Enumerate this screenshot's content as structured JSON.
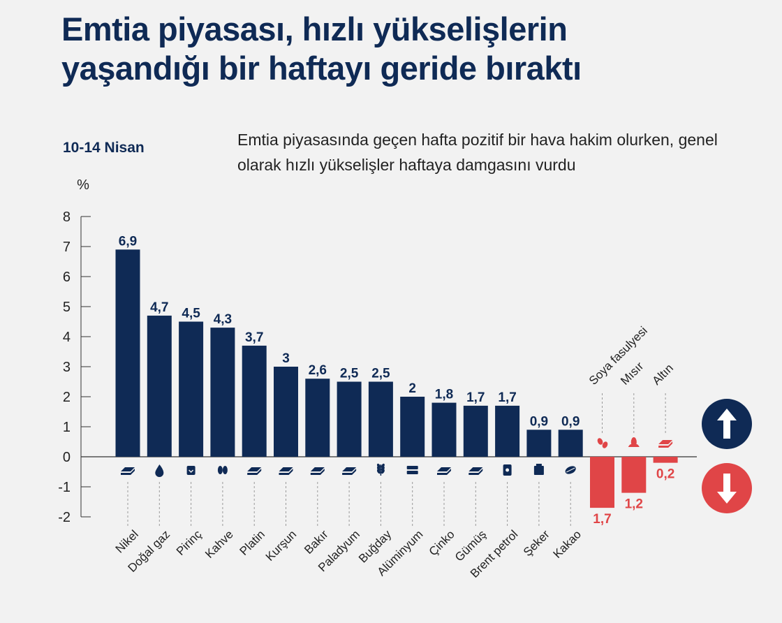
{
  "title_lines": [
    "Emtia piyasası, hızlı yükselişlerin",
    "yaşandığı bir haftayı geride bıraktı"
  ],
  "period": "10-14 Nisan",
  "subtitle": "Emtia piyasasında geçen hafta pozitif bir hava hakim olurken, genel olarak hızlı yükselişler haftaya damgasını vurdu",
  "colors": {
    "up": "#0f2a55",
    "down": "#e04547",
    "background": "#f2f2f2",
    "text": "#222222"
  },
  "chart_data": {
    "type": "bar",
    "ylabel": "%",
    "ylim": [
      -2,
      8
    ],
    "yticks": [
      8,
      7,
      6,
      5,
      4,
      3,
      2,
      1,
      0,
      -1,
      -2
    ],
    "categories": [
      "Nikel",
      "Doğal gaz",
      "Pirinç",
      "Kahve",
      "Platin",
      "Kurşun",
      "Bakır",
      "Paladyum",
      "Buğday",
      "Alüminyum",
      "Çinko",
      "Gümüş",
      "Brent petrol",
      "Şeker",
      "Kakao",
      "Soya fasulyesi",
      "Mısır",
      "Altın"
    ],
    "values": [
      6.9,
      4.7,
      4.5,
      4.3,
      3.7,
      3.0,
      2.6,
      2.5,
      2.5,
      2.0,
      1.8,
      1.7,
      1.7,
      0.9,
      0.9,
      -1.7,
      -1.2,
      -0.2
    ],
    "labels": [
      "6,9",
      "4,7",
      "4,5",
      "4,3",
      "3,7",
      "3",
      "2,6",
      "2,5",
      "2,5",
      "2",
      "1,8",
      "1,7",
      "1,7",
      "0,9",
      "0,9",
      "1,7",
      "1,2",
      "0,2"
    ],
    "icons": [
      "metal-bars-icon",
      "flame-drop-icon",
      "rice-bag-icon",
      "coffee-bean-icon",
      "metal-bars-icon",
      "metal-bars-icon",
      "metal-bars-icon",
      "metal-bars-icon",
      "wheat-icon",
      "metal-stack-icon",
      "metal-bars-icon",
      "metal-bars-icon",
      "oil-barrel-icon",
      "sugar-bag-icon",
      "cocoa-pod-icon",
      "soybean-icon",
      "corn-icon",
      "gold-bars-icon"
    ],
    "legend": {
      "up": "arrow-up-icon",
      "down": "arrow-down-icon"
    }
  }
}
